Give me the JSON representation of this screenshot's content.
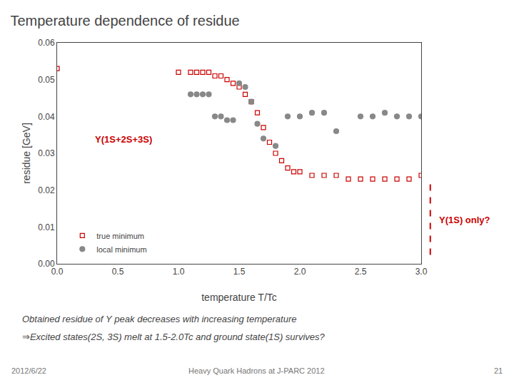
{
  "chart_data": {
    "type": "scatter",
    "title": "Temperature dependence of residue",
    "xlabel": "temperature T/Tc",
    "ylabel": "residue [GeV]",
    "xlim": [
      0,
      3.0
    ],
    "ylim": [
      0,
      0.06
    ],
    "xticks": [
      {
        "value": 0,
        "label": "0.0"
      },
      {
        "value": 0.5,
        "label": "0.5"
      },
      {
        "value": 1,
        "label": "1.0"
      },
      {
        "value": 1.5,
        "label": "1.5"
      },
      {
        "value": 2,
        "label": "2.0"
      },
      {
        "value": 2.5,
        "label": "2.5"
      },
      {
        "value": 3,
        "label": "3.0"
      }
    ],
    "yticks": [
      {
        "value": 0,
        "label": "0.00"
      },
      {
        "value": 0.01,
        "label": "0.01"
      },
      {
        "value": 0.02,
        "label": "0.02"
      },
      {
        "value": 0.03,
        "label": "0.03"
      },
      {
        "value": 0.04,
        "label": "0.04"
      },
      {
        "value": 0.05,
        "label": "0.05"
      },
      {
        "value": 0.06,
        "label": "0.06"
      }
    ],
    "grid": false,
    "legend": "lower left",
    "series": [
      {
        "name": "true minimum",
        "color": "#cc0000",
        "marker": "square-open",
        "x": [
          0.0,
          1.0,
          1.1,
          1.15,
          1.2,
          1.25,
          1.3,
          1.35,
          1.4,
          1.45,
          1.5,
          1.55,
          1.6,
          1.65,
          1.7,
          1.75,
          1.8,
          1.85,
          1.9,
          1.95,
          2.0,
          2.1,
          2.2,
          2.3,
          2.4,
          2.5,
          2.6,
          2.7,
          2.8,
          2.9,
          3.0
        ],
        "values": [
          0.053,
          0.052,
          0.052,
          0.052,
          0.052,
          0.052,
          0.051,
          0.051,
          0.05,
          0.049,
          0.048,
          0.046,
          0.044,
          0.041,
          0.037,
          0.033,
          0.03,
          0.028,
          0.026,
          0.025,
          0.025,
          0.024,
          0.024,
          0.024,
          0.023,
          0.023,
          0.023,
          0.023,
          0.023,
          0.023,
          0.024
        ]
      },
      {
        "name": "local minimum",
        "color": "#888888",
        "marker": "circle",
        "x": [
          1.1,
          1.15,
          1.2,
          1.25,
          1.3,
          1.35,
          1.4,
          1.45,
          1.5,
          1.55,
          1.6,
          1.65,
          1.7,
          1.8,
          1.9,
          2.0,
          2.1,
          2.2,
          2.3,
          2.5,
          2.6,
          2.7,
          2.8,
          2.9,
          3.0
        ],
        "values": [
          0.046,
          0.046,
          0.046,
          0.046,
          0.04,
          0.04,
          0.039,
          0.039,
          0.049,
          0.048,
          0.044,
          0.038,
          0.034,
          0.032,
          0.04,
          0.04,
          0.041,
          0.041,
          0.036,
          0.04,
          0.04,
          0.041,
          0.04,
          0.04,
          0.04
        ]
      }
    ],
    "annotations": [
      {
        "text": "Y(1S+2S+3S)",
        "x": 0.3,
        "y": 0.032,
        "color": "#cc0000"
      },
      {
        "text": "Y(1S) only?",
        "color": "#cc0000"
      }
    ],
    "caption": [
      "Obtained residue of Υ peak decreases with increasing temperature",
      "⇒Excited states(2S, 3S) melt at 1.5-2.0Tc and ground state(1S) survives?"
    ],
    "footer": [
      "2012/6/22",
      "Heavy Quark Hadrons at J-PARC 2012",
      "21"
    ]
  }
}
